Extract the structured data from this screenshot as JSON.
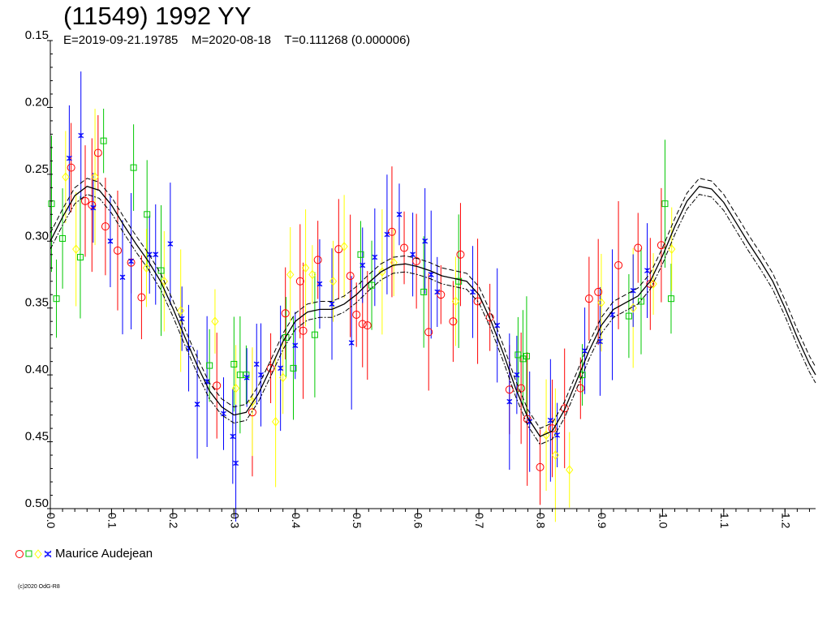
{
  "chart_data": {
    "type": "scatter",
    "title": "(11549) 1992 YY",
    "subtitle": "E=2019-09-21.19785    M=2020-08-18    T=0.111268 (0.000006)",
    "xlabel": "",
    "ylabel": "",
    "xlim": [
      0,
      1.25
    ],
    "ylim": [
      0.15,
      0.5
    ],
    "y_inverted": true,
    "grid": false,
    "legend_position": "bottom-left",
    "x_ticks": [
      "0.0",
      "0.1",
      "0.2",
      "0.3",
      "0.4",
      "0.5",
      "0.6",
      "0.7",
      "0.8",
      "0.9",
      "1.0",
      "1.1",
      "1.2"
    ],
    "y_ticks": [
      "0.15",
      "0.20",
      "0.25",
      "0.30",
      "0.35",
      "0.40",
      "0.45",
      "0.50"
    ],
    "legend": [
      {
        "name": "Maurice Audejean",
        "markers": [
          "circle",
          "square",
          "diamond",
          "star"
        ],
        "colors": [
          "#ff0000",
          "#00c800",
          "#ffff00",
          "#0000ff"
        ]
      }
    ],
    "fit_curve": {
      "x": [
        0.0,
        0.02,
        0.04,
        0.06,
        0.08,
        0.1,
        0.12,
        0.14,
        0.16,
        0.18,
        0.2,
        0.22,
        0.24,
        0.26,
        0.28,
        0.3,
        0.32,
        0.34,
        0.36,
        0.38,
        0.4,
        0.42,
        0.44,
        0.46,
        0.48,
        0.5,
        0.52,
        0.54,
        0.56,
        0.58,
        0.6,
        0.62,
        0.64,
        0.66,
        0.68,
        0.7,
        0.72,
        0.74,
        0.76,
        0.78,
        0.8,
        0.82,
        0.84,
        0.86,
        0.88,
        0.9,
        0.92,
        0.94,
        0.96,
        0.98,
        1.0,
        1.02,
        1.04,
        1.06,
        1.08,
        1.1,
        1.12,
        1.14,
        1.16,
        1.18,
        1.2,
        1.22,
        1.24,
        1.25
      ],
      "y": [
        0.3,
        0.282,
        0.266,
        0.259,
        0.262,
        0.273,
        0.288,
        0.302,
        0.315,
        0.33,
        0.35,
        0.372,
        0.393,
        0.412,
        0.424,
        0.43,
        0.428,
        0.414,
        0.395,
        0.375,
        0.36,
        0.353,
        0.351,
        0.351,
        0.347,
        0.34,
        0.331,
        0.323,
        0.318,
        0.317,
        0.319,
        0.322,
        0.326,
        0.328,
        0.33,
        0.34,
        0.36,
        0.384,
        0.41,
        0.432,
        0.446,
        0.442,
        0.426,
        0.404,
        0.382,
        0.363,
        0.351,
        0.346,
        0.341,
        0.33,
        0.311,
        0.289,
        0.27,
        0.259,
        0.261,
        0.271,
        0.286,
        0.301,
        0.315,
        0.33,
        0.35,
        0.372,
        0.392,
        0.4
      ],
      "band": 0.006
    },
    "series": [
      {
        "name": "Maurice Audejean",
        "marker": "circle",
        "color": "#ff0000",
        "x": [
          0.034,
          0.057,
          0.068,
          0.078,
          0.09,
          0.11,
          0.132,
          0.149,
          0.272,
          0.33,
          0.36,
          0.384,
          0.408,
          0.413,
          0.437,
          0.471,
          0.49,
          0.5,
          0.51,
          0.518,
          0.558,
          0.578,
          0.598,
          0.618,
          0.638,
          0.658,
          0.67,
          0.698,
          0.718,
          0.75,
          0.769,
          0.779,
          0.8,
          0.82,
          0.84,
          0.866,
          0.88,
          0.895,
          0.928,
          0.96,
          0.98,
          0.998
        ],
        "y": [
          0.245,
          0.27,
          0.273,
          0.234,
          0.289,
          0.307,
          0.316,
          0.342,
          0.408,
          0.428,
          0.395,
          0.354,
          0.33,
          0.367,
          0.314,
          0.306,
          0.326,
          0.355,
          0.362,
          0.363,
          0.293,
          0.305,
          0.315,
          0.368,
          0.34,
          0.36,
          0.31,
          0.345,
          0.357,
          0.411,
          0.41,
          0.433,
          0.469,
          0.44,
          0.425,
          0.41,
          0.343,
          0.338,
          0.318,
          0.305,
          0.332,
          0.303
        ]
      },
      {
        "name": "Maurice Audejean",
        "marker": "square",
        "color": "#00c800",
        "x": [
          0.002,
          0.01,
          0.02,
          0.049,
          0.087,
          0.136,
          0.158,
          0.181,
          0.26,
          0.3,
          0.31,
          0.32,
          0.385,
          0.397,
          0.432,
          0.507,
          0.525,
          0.61,
          0.667,
          0.764,
          0.772,
          0.778,
          0.869,
          0.945,
          0.965,
          1.004,
          1.014
        ],
        "y": [
          0.272,
          0.343,
          0.298,
          0.312,
          0.225,
          0.245,
          0.28,
          0.322,
          0.393,
          0.392,
          0.4,
          0.4,
          0.372,
          0.395,
          0.37,
          0.31,
          0.333,
          0.338,
          0.33,
          0.385,
          0.388,
          0.386,
          0.4,
          0.356,
          0.345,
          0.272,
          0.343
        ]
      },
      {
        "name": "Maurice Audejean",
        "marker": "diamond",
        "color": "#ffff00",
        "x": [
          0.025,
          0.042,
          0.073,
          0.157,
          0.186,
          0.213,
          0.269,
          0.303,
          0.33,
          0.368,
          0.38,
          0.392,
          0.417,
          0.428,
          0.462,
          0.48,
          0.542,
          0.561,
          0.662,
          0.81,
          0.825,
          0.848,
          0.9,
          0.952,
          0.985,
          1.015
        ],
        "y": [
          0.252,
          0.306,
          0.252,
          0.32,
          0.33,
          0.352,
          0.36,
          0.41,
          0.42,
          0.435,
          0.402,
          0.325,
          0.32,
          0.325,
          0.33,
          0.304,
          0.323,
          0.316,
          0.345,
          0.445,
          0.46,
          0.471,
          0.346,
          0.35,
          0.332,
          0.306
        ]
      },
      {
        "name": "Maurice Audejean",
        "marker": "star",
        "color": "#0000ff",
        "x": [
          0.031,
          0.05,
          0.07,
          0.098,
          0.118,
          0.132,
          0.162,
          0.172,
          0.196,
          0.215,
          0.226,
          0.24,
          0.256,
          0.283,
          0.298,
          0.303,
          0.321,
          0.337,
          0.344,
          0.376,
          0.4,
          0.44,
          0.46,
          0.492,
          0.51,
          0.53,
          0.55,
          0.57,
          0.592,
          0.612,
          0.622,
          0.632,
          0.69,
          0.73,
          0.75,
          0.762,
          0.783,
          0.817,
          0.828,
          0.873,
          0.898,
          0.918,
          0.952,
          0.975
        ],
        "y": [
          0.238,
          0.221,
          0.275,
          0.3,
          0.327,
          0.315,
          0.31,
          0.31,
          0.302,
          0.358,
          0.38,
          0.422,
          0.405,
          0.429,
          0.446,
          0.466,
          0.402,
          0.392,
          0.4,
          0.395,
          0.378,
          0.332,
          0.347,
          0.376,
          0.318,
          0.312,
          0.295,
          0.28,
          0.31,
          0.3,
          0.325,
          0.338,
          0.338,
          0.363,
          0.42,
          0.4,
          0.435,
          0.434,
          0.445,
          0.382,
          0.375,
          0.355,
          0.337,
          0.322
        ]
      }
    ]
  },
  "copyright": "(c)2020 OdG-R8"
}
